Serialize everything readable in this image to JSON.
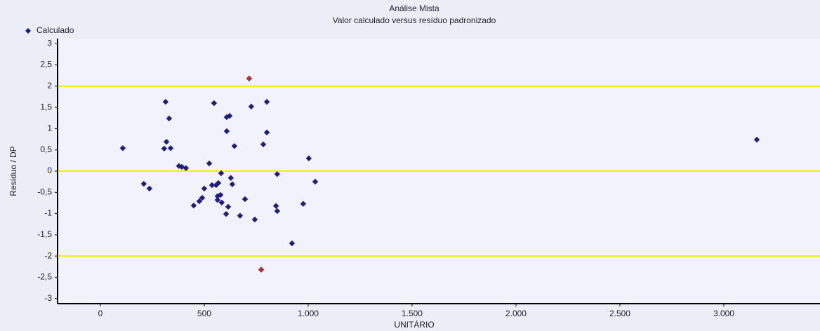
{
  "chart_data": {
    "type": "scatter",
    "title": "Análise Mista",
    "subtitle": "Valor calculado versus resíduo padronizado",
    "x_label": "UNITÁRIO",
    "y_label": "Resíduo / DP",
    "xlim": [
      -206,
      3463
    ],
    "ylim": [
      -3.12,
      3.12
    ],
    "xticks": [
      0,
      500,
      {
        "value": 1000,
        "label": "1.000"
      },
      {
        "value": 1500,
        "label": "1.500"
      },
      {
        "value": 2000,
        "label": "2.000"
      },
      {
        "value": 2500,
        "label": "2.500"
      },
      {
        "value": 3000,
        "label": "3.000"
      }
    ],
    "yticks": [
      3,
      {
        "value": 2.5,
        "label": "2,5"
      },
      2,
      {
        "value": 1.5,
        "label": "1,5"
      },
      1,
      {
        "value": 0.5,
        "label": "0,5"
      },
      0,
      {
        "value": -0.5,
        "label": "-0,5"
      },
      -1,
      {
        "value": -1.5,
        "label": "-1,5"
      },
      -2,
      {
        "value": -2.5,
        "label": "-2,5"
      },
      -3
    ],
    "reference_lines": [
      2,
      0,
      -2
    ],
    "reference_color": "#f2f200",
    "legend": "top-left",
    "series": [
      {
        "name": "Calculado",
        "color": "#1c1c8a",
        "x": [
          108,
          209,
          236,
          307,
          318,
          338,
          314,
          331,
          378,
          392,
          412,
          449,
          476,
          490,
          500,
          524,
          537,
          547,
          557,
          564,
          564,
          568,
          578,
          581,
          584,
          605,
          608,
          615,
          622,
          608,
          628,
          635,
          645,
          672,
          696,
          726,
          743,
          784,
          801,
          801,
          845,
          851,
          851,
          922,
          976,
          1003,
          1034,
          3159
        ],
        "values": [
          0.54,
          -0.3,
          -0.41,
          0.53,
          0.69,
          0.54,
          1.63,
          1.24,
          0.12,
          0.1,
          0.07,
          -0.81,
          -0.71,
          -0.63,
          -0.41,
          0.18,
          -0.33,
          1.6,
          -0.33,
          -0.68,
          -0.59,
          -0.28,
          -0.56,
          -0.05,
          -0.74,
          -1.01,
          1.27,
          -0.84,
          1.3,
          0.94,
          -0.16,
          -0.31,
          0.59,
          -1.05,
          -0.66,
          1.52,
          -1.14,
          0.63,
          1.63,
          0.91,
          -0.82,
          -0.07,
          -0.94,
          -1.7,
          -0.77,
          0.3,
          -0.25,
          0.74
        ]
      },
      {
        "color": "#c8282a",
        "x": [
          716,
          774
        ],
        "values": [
          2.18,
          -2.32
        ]
      }
    ]
  }
}
